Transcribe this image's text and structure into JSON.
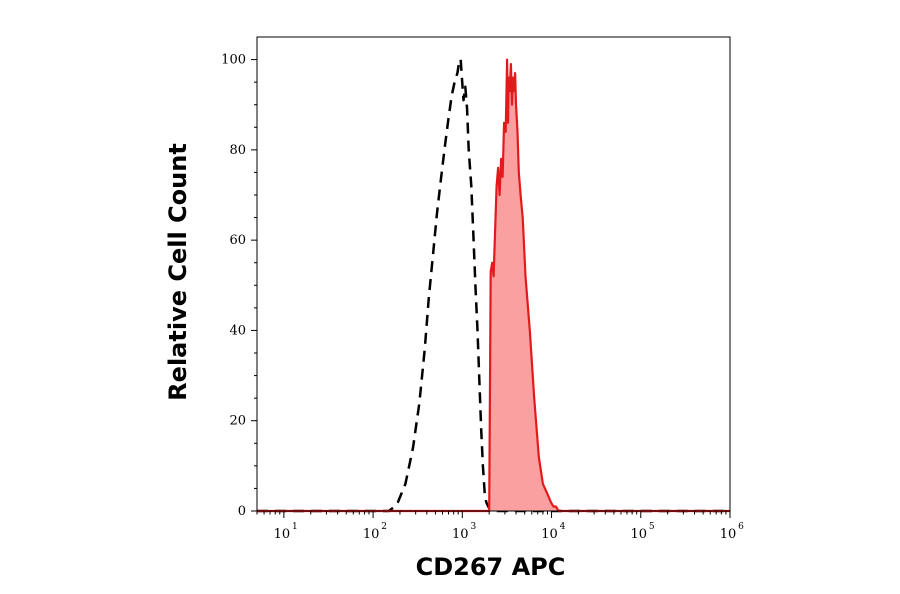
{
  "chart_data": {
    "type": "area",
    "title": "",
    "xlabel": "CD267 APC",
    "ylabel": "Relative Cell Count",
    "xscale": "log",
    "xlim": [
      5,
      1000000
    ],
    "ylim": [
      0,
      105
    ],
    "grid": false,
    "x_ticks": [
      {
        "base": "10",
        "exp": "1",
        "value": 10
      },
      {
        "base": "10",
        "exp": "2",
        "value": 100
      },
      {
        "base": "10",
        "exp": "3",
        "value": 1000
      },
      {
        "base": "10",
        "exp": "4",
        "value": 10000
      },
      {
        "base": "10",
        "exp": "5",
        "value": 100000
      },
      {
        "base": "10",
        "exp": "6",
        "value": 1000000
      }
    ],
    "y_ticks": [
      "0",
      "20",
      "40",
      "60",
      "80",
      "100"
    ],
    "series": [
      {
        "style": "dashed",
        "color": "#000000",
        "fill": "none",
        "x": [
          5,
          150,
          175,
          190,
          230,
          280,
          330,
          380,
          420,
          470,
          520,
          580,
          640,
          700,
          760,
          820,
          880,
          930,
          960,
          990,
          1030,
          1080,
          1130,
          1180,
          1260,
          1330,
          1400,
          1480,
          1560,
          1630,
          1700,
          1780,
          1850,
          1950,
          2100,
          1000000
        ],
        "y": [
          0,
          0,
          1,
          2,
          6,
          14,
          24,
          36,
          47,
          57,
          66,
          74,
          81,
          87,
          92,
          95,
          97,
          100,
          100,
          96,
          91,
          94,
          89,
          80,
          72,
          61,
          50,
          40,
          28,
          18,
          10,
          4,
          2,
          1,
          0,
          0
        ]
      },
      {
        "style": "solid-filled",
        "color": "#e31a1c",
        "fill": "#fba0a0",
        "x": [
          5,
          2000,
          2080,
          2160,
          2240,
          2330,
          2420,
          2520,
          2620,
          2720,
          2830,
          2940,
          3060,
          3180,
          3250,
          3310,
          3400,
          3500,
          3600,
          3700,
          3800,
          3900,
          4000,
          4150,
          4300,
          4500,
          4750,
          5100,
          5700,
          6400,
          7200,
          8000,
          8900,
          9800,
          10500,
          11200,
          12000,
          1000000
        ],
        "y": [
          0,
          0,
          53,
          55,
          52,
          62,
          72,
          76,
          70,
          78,
          74,
          86,
          84,
          100,
          86,
          96,
          93,
          99,
          90,
          96,
          93,
          97,
          90,
          84,
          75,
          70,
          65,
          52,
          40,
          25,
          12,
          6,
          4,
          2,
          1,
          1,
          0,
          0
        ]
      }
    ]
  }
}
